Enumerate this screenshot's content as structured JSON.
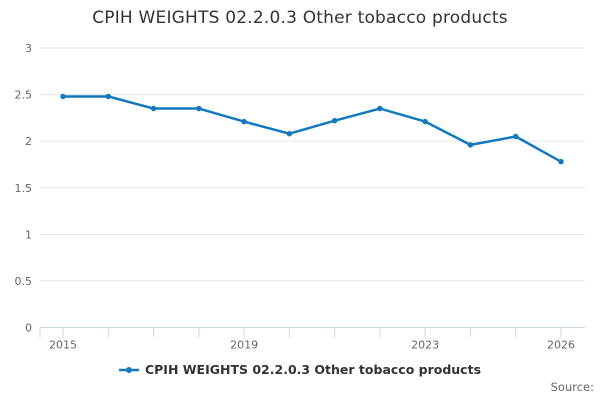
{
  "title": "CPIH WEIGHTS 02.2.0.3 Other tobacco products",
  "source": {
    "label": "Source:"
  },
  "legend": {
    "position": "bottom",
    "items": [
      {
        "label": "CPIH WEIGHTS 02.2.0.3 Other tobacco products",
        "color": "#1478be",
        "symbol": "line-with-marker"
      }
    ]
  },
  "colors": {
    "series_blue": "#1478be",
    "gridline": "#e6e6e6",
    "axis_line": "#ccd6eb",
    "tick_label": "#666666",
    "title_text": "#333333",
    "legend_text": "#333333",
    "source_text": "#666666",
    "background": "#ffffff"
  },
  "chart_data": {
    "type": "line",
    "title": "CPIH WEIGHTS 02.2.0.3 Other tobacco products",
    "x": [
      2015,
      2016,
      2017,
      2018,
      2019,
      2020,
      2021,
      2022,
      2023,
      2024,
      2025,
      2026
    ],
    "series": [
      {
        "name": "CPIH WEIGHTS 02.2.0.3 Other tobacco products",
        "color": "#1478be",
        "values": [
          2.48,
          2.48,
          2.35,
          2.35,
          2.21,
          2.08,
          2.22,
          2.35,
          2.21,
          1.96,
          2.05,
          1.78
        ]
      }
    ],
    "xlabel": "",
    "ylabel": "",
    "ylim": [
      0,
      3
    ],
    "yticks": [
      0,
      0.5,
      1,
      1.5,
      2,
      2.5,
      3
    ],
    "xticks_labeled": [
      2015,
      2019,
      2023,
      2026
    ],
    "grid": true,
    "legend_position": "bottom",
    "marker": "circle"
  }
}
